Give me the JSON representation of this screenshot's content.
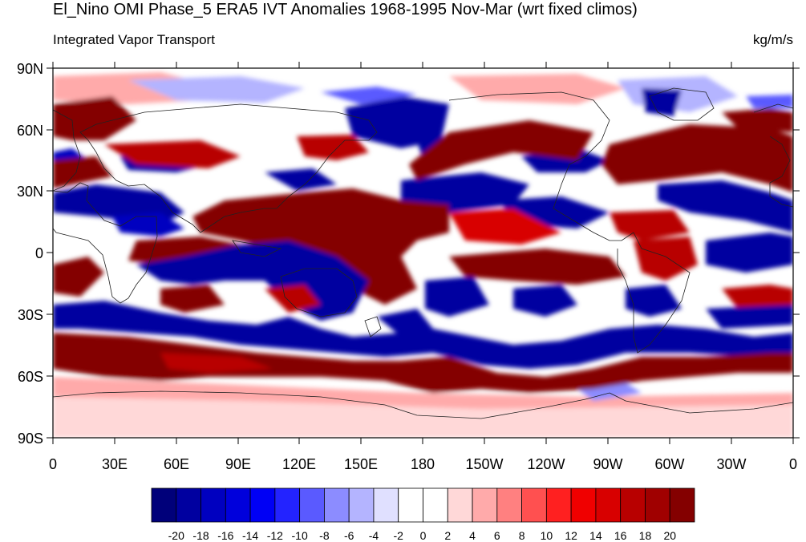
{
  "title": "El_Nino OMI Phase_5 ERA5 IVT Anomalies 1968-1995 Nov-Mar (wrt fixed climos)",
  "left_subtitle": "Integrated Vapor Transport",
  "right_subtitle": "kg/m/s",
  "lat_labels": [
    "90N",
    "60N",
    "30N",
    "0",
    "30S",
    "60S",
    "90S"
  ],
  "lon_labels": [
    "0",
    "30E",
    "60E",
    "90E",
    "120E",
    "150E",
    "180",
    "150W",
    "120W",
    "90W",
    "60W",
    "30W",
    "0"
  ],
  "colorbar": {
    "labels": [
      "-20",
      "-18",
      "-16",
      "-14",
      "-12",
      "-10",
      "-8",
      "-6",
      "-4",
      "-2",
      "0",
      "2",
      "4",
      "6",
      "8",
      "10",
      "12",
      "14",
      "16",
      "18",
      "20"
    ],
    "colors": [
      "#00007a",
      "#0000a0",
      "#0000c0",
      "#0000dc",
      "#0000f5",
      "#2323ff",
      "#5a5aff",
      "#8c8cff",
      "#b4b4ff",
      "#e0e0ff",
      "#ffffff",
      "#ffffff",
      "#ffd8d8",
      "#ffaaaa",
      "#ff8080",
      "#ff5050",
      "#ff2020",
      "#f00000",
      "#d80000",
      "#b80000",
      "#a00000",
      "#840000"
    ]
  },
  "colors": {
    "strong_red": "#840000",
    "strong_blue": "#0000a0",
    "coast": "#222222"
  }
}
